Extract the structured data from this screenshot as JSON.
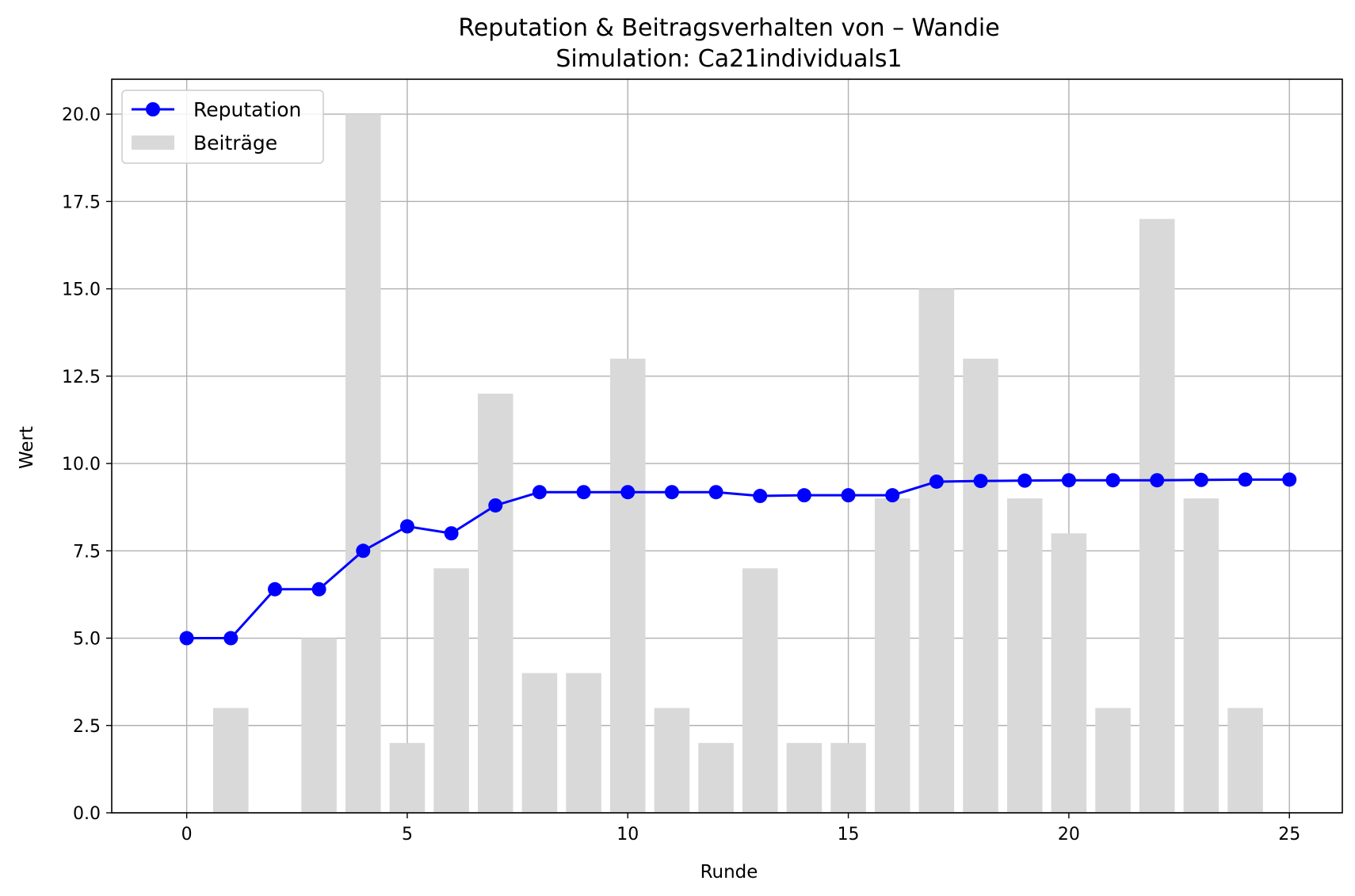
{
  "chart_data": {
    "type": "bar+line",
    "title": "Reputation & Beitragsverhalten von – Wandie",
    "subtitle": "Simulation: Ca21individuals1",
    "xlabel": "Runde",
    "ylabel": "Wert",
    "xlim": [
      -1.7,
      26.2
    ],
    "ylim": [
      0,
      21
    ],
    "xticks": [
      0,
      5,
      10,
      15,
      20,
      25
    ],
    "yticks": [
      0.0,
      2.5,
      5.0,
      7.5,
      10.0,
      12.5,
      15.0,
      17.5,
      20.0
    ],
    "ytick_labels": [
      "0.0",
      "2.5",
      "5.0",
      "7.5",
      "10.0",
      "12.5",
      "15.0",
      "17.5",
      "20.0"
    ],
    "grid": true,
    "legend_position": "upper-left",
    "series": [
      {
        "name": "Reputation",
        "kind": "line",
        "color": "#0000ff",
        "marker": "circle",
        "x": [
          0,
          1,
          2,
          3,
          4,
          5,
          6,
          7,
          8,
          9,
          10,
          11,
          12,
          13,
          14,
          15,
          16,
          17,
          18,
          19,
          20,
          21,
          22,
          23,
          24,
          25
        ],
        "values": [
          5.0,
          5.0,
          6.4,
          6.4,
          7.5,
          8.2,
          8.0,
          8.8,
          9.18,
          9.18,
          9.18,
          9.18,
          9.18,
          9.07,
          9.09,
          9.09,
          9.09,
          9.48,
          9.5,
          9.51,
          9.52,
          9.52,
          9.52,
          9.53,
          9.54,
          9.54
        ]
      },
      {
        "name": "Beiträge",
        "kind": "bar",
        "color": "#d9d9d9",
        "x": [
          1,
          3,
          4,
          5,
          6,
          7,
          8,
          9,
          10,
          11,
          12,
          13,
          14,
          15,
          16,
          17,
          18,
          19,
          20,
          21,
          22,
          23,
          24
        ],
        "values": [
          3,
          5,
          20,
          2,
          7,
          12,
          4,
          4,
          13,
          3,
          2,
          7,
          2,
          2,
          9,
          15,
          13,
          9,
          8,
          3,
          17,
          9,
          3
        ]
      }
    ]
  }
}
